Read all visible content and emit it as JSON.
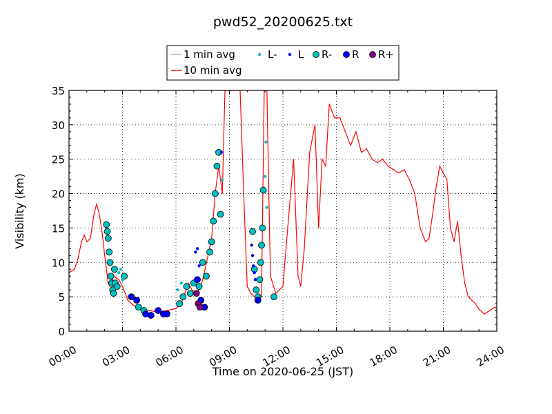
{
  "chart_data": {
    "type": "line",
    "title": "pwd52_20200625.txt",
    "xlabel": "Time on 2020-06-25 (JST)",
    "ylabel": "Visibility (km)",
    "xlim": [
      0,
      24
    ],
    "ylim": [
      0,
      35
    ],
    "x_tick_labels": [
      "00:00",
      "03:00",
      "06:00",
      "09:00",
      "12:00",
      "15:00",
      "18:00",
      "21:00",
      "24:00"
    ],
    "y_ticks": [
      "0",
      "5",
      "10",
      "15",
      "20",
      "25",
      "30",
      "35"
    ],
    "grid": true,
    "legend_position": "top-center",
    "legend": [
      {
        "label": "1 min avg",
        "kind": "line",
        "color": "#aaaaaa"
      },
      {
        "label": "L-",
        "kind": "dot",
        "color": "#00bfbf"
      },
      {
        "label": "L",
        "kind": "dot",
        "color": "#0000ff"
      },
      {
        "label": "R-",
        "kind": "marker",
        "color": "#00bfbf"
      },
      {
        "label": "R",
        "kind": "marker",
        "color": "#0000ff"
      },
      {
        "label": "R+",
        "kind": "marker",
        "color": "#800080"
      },
      {
        "label": "10 min avg",
        "kind": "line",
        "color": "#ff0000"
      }
    ],
    "series": [
      {
        "name": "10 min avg",
        "color": "#ff0000",
        "x": [
          0.0,
          0.3,
          0.5,
          0.7,
          0.85,
          1.0,
          1.2,
          1.4,
          1.55,
          1.7,
          1.85,
          2.0,
          2.2,
          2.3,
          2.5,
          2.8,
          3.0,
          3.3,
          3.6,
          4.0,
          4.5,
          5.0,
          5.5,
          6.0,
          6.3,
          6.5,
          6.7,
          6.9,
          7.2,
          7.5,
          7.8,
          8.0,
          8.2,
          8.4,
          8.6,
          8.75,
          8.9,
          9.3,
          9.6,
          9.8,
          10.0,
          10.2,
          10.4,
          10.6,
          10.8,
          10.95,
          11.1,
          11.3,
          11.6,
          12.0,
          12.3,
          12.6,
          12.85,
          13.0,
          13.2,
          13.5,
          13.8,
          14.0,
          14.2,
          14.4,
          14.6,
          14.9,
          15.2,
          15.5,
          15.8,
          16.1,
          16.4,
          16.7,
          17.0,
          17.3,
          17.6,
          17.9,
          18.2,
          18.5,
          18.8,
          19.1,
          19.4,
          19.7,
          20.0,
          20.2,
          20.4,
          20.6,
          20.8,
          21.0,
          21.2,
          21.4,
          21.6,
          21.8,
          22.0,
          22.2,
          22.4,
          22.6,
          22.8,
          23.0,
          23.3,
          23.6,
          23.9,
          24.0
        ],
        "values": [
          8.5,
          9.0,
          10.5,
          13.0,
          14.0,
          13.0,
          13.5,
          17.0,
          18.5,
          17.0,
          14.5,
          11.0,
          7.0,
          6.5,
          8.0,
          7.5,
          6.5,
          4.5,
          3.8,
          3.2,
          3.0,
          2.8,
          3.0,
          3.3,
          4.0,
          5.5,
          7.0,
          6.0,
          5.5,
          7.5,
          11.0,
          13.5,
          20.0,
          24.0,
          20.0,
          35.0,
          35.0,
          35.0,
          35.0,
          20.0,
          6.5,
          5.5,
          5.0,
          4.5,
          5.0,
          35.0,
          35.0,
          8.0,
          5.5,
          6.5,
          16.0,
          25.0,
          8.0,
          6.5,
          12.0,
          26.0,
          30.0,
          15.0,
          25.0,
          24.0,
          33.0,
          31.0,
          31.0,
          29.0,
          27.0,
          29.0,
          26.0,
          26.5,
          25.0,
          24.5,
          25.0,
          24.0,
          23.5,
          23.0,
          23.5,
          22.0,
          20.0,
          15.0,
          13.0,
          13.5,
          17.0,
          21.0,
          24.0,
          23.0,
          22.0,
          15.0,
          13.0,
          16.0,
          11.0,
          7.0,
          5.0,
          4.5,
          4.0,
          3.2,
          2.5,
          3.0,
          3.5,
          3.3
        ],
        "note_values_above_35_are_clipped": true
      }
    ],
    "marker_series": [
      {
        "name": "R-",
        "color": "#00bfbf",
        "x": [
          2.1,
          2.15,
          2.2,
          2.25,
          2.3,
          2.35,
          2.4,
          2.45,
          2.5,
          2.55,
          2.6,
          2.7,
          3.1,
          3.9,
          4.2,
          6.2,
          6.4,
          6.6,
          6.8,
          7.0,
          7.3,
          7.5,
          7.7,
          7.9,
          8.0,
          8.1,
          8.2,
          8.3,
          8.4,
          8.5,
          10.3,
          10.4,
          10.5,
          10.6,
          10.7,
          10.75,
          10.8,
          10.85,
          10.9,
          11.5
        ],
        "values": [
          15.5,
          14.5,
          13.5,
          11.5,
          10.0,
          8.0,
          7.0,
          6.0,
          5.5,
          9.0,
          7.0,
          6.5,
          8.0,
          3.5,
          3.0,
          4.0,
          5.0,
          6.5,
          5.5,
          7.0,
          6.5,
          10.0,
          8.0,
          11.5,
          13.0,
          16.0,
          20.0,
          24.0,
          26.0,
          17.0,
          14.5,
          9.0,
          6.0,
          5.0,
          7.5,
          10.0,
          12.5,
          15.0,
          20.5,
          5.0
        ]
      },
      {
        "name": "R",
        "color": "#0000ff",
        "x": [
          3.5,
          3.8,
          4.3,
          4.6,
          5.0,
          5.3,
          5.5,
          7.2,
          7.4,
          7.6,
          10.6
        ],
        "values": [
          5.0,
          4.5,
          2.5,
          2.3,
          3.0,
          2.5,
          2.5,
          7.5,
          4.5,
          3.5,
          4.5
        ]
      },
      {
        "name": "R+",
        "color": "#800080",
        "x": [
          7.15,
          7.25,
          7.35
        ],
        "values": [
          5.5,
          4.0,
          3.5
        ]
      },
      {
        "name": "L-",
        "color": "#00bfbf",
        "x": [
          2.8,
          2.9,
          3.0,
          6.1,
          6.3,
          8.6,
          11.0,
          11.05,
          11.1
        ],
        "values": [
          8.5,
          9.0,
          7.5,
          6.0,
          7.0,
          22.0,
          22.5,
          27.5,
          18.0
        ]
      },
      {
        "name": "L",
        "color": "#0000ff",
        "x": [
          7.1,
          7.2,
          7.3,
          8.55,
          10.25,
          10.3,
          10.35,
          10.4,
          10.45
        ],
        "values": [
          11.5,
          12.0,
          9.5,
          26.0,
          12.5,
          11.0,
          9.5,
          8.5,
          7.5
        ]
      }
    ]
  }
}
